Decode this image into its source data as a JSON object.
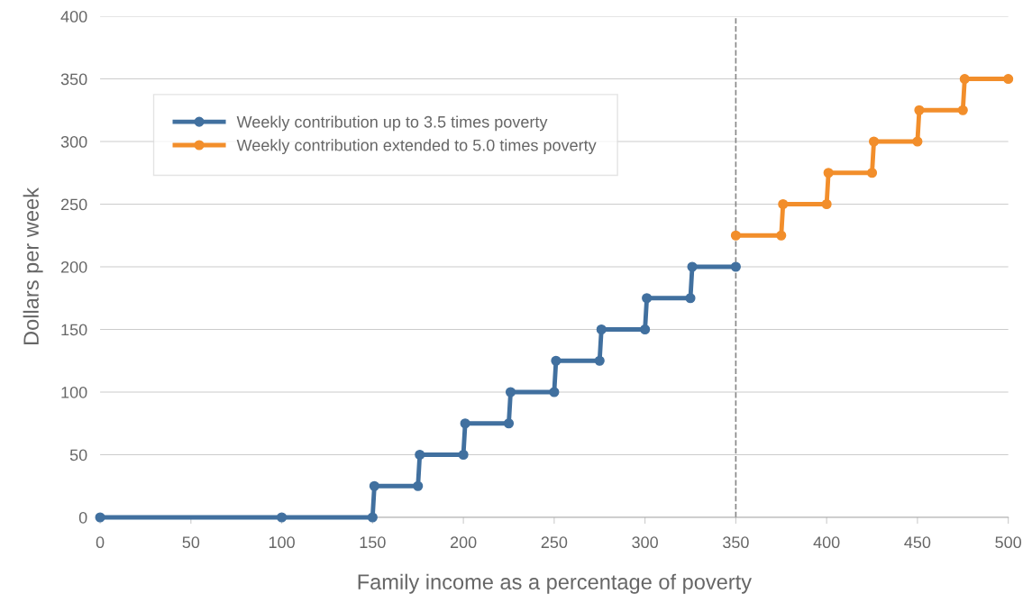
{
  "chart_data": {
    "type": "line",
    "xlabel": "Family income as a percentage of poverty",
    "ylabel": "Dollars per week",
    "series": [
      {
        "name": "Weekly contribution up to 3.5 times poverty",
        "color": "#41709f",
        "x": [
          0,
          100,
          150,
          151,
          175,
          176,
          200,
          201,
          225,
          226,
          250,
          251,
          275,
          276,
          300,
          301,
          325,
          326,
          350
        ],
        "values": [
          0,
          0,
          0,
          25,
          25,
          50,
          50,
          75,
          75,
          100,
          100,
          125,
          125,
          150,
          150,
          175,
          175,
          200,
          200
        ]
      },
      {
        "name": "Weekly contribution extended to 5.0 times poverty",
        "color": "#f28e2b",
        "x": [
          350,
          375,
          376,
          400,
          401,
          425,
          426,
          450,
          451,
          475,
          476,
          500
        ],
        "values": [
          225,
          225,
          250,
          250,
          275,
          275,
          300,
          300,
          325,
          325,
          350,
          350
        ]
      }
    ],
    "xlim": [
      0,
      500
    ],
    "ylim": [
      0,
      400
    ],
    "xticks": [
      0,
      50,
      100,
      150,
      200,
      250,
      300,
      350,
      400,
      450,
      500
    ],
    "yticks": [
      0,
      50,
      100,
      150,
      200,
      250,
      300,
      350,
      400
    ],
    "ref_lines": [
      {
        "axis": "x",
        "value": 350,
        "color": "#888888",
        "line_style": "dashed"
      }
    ],
    "grid": "y",
    "legend": "top left",
    "marker": "circle",
    "line_style": "solid"
  }
}
